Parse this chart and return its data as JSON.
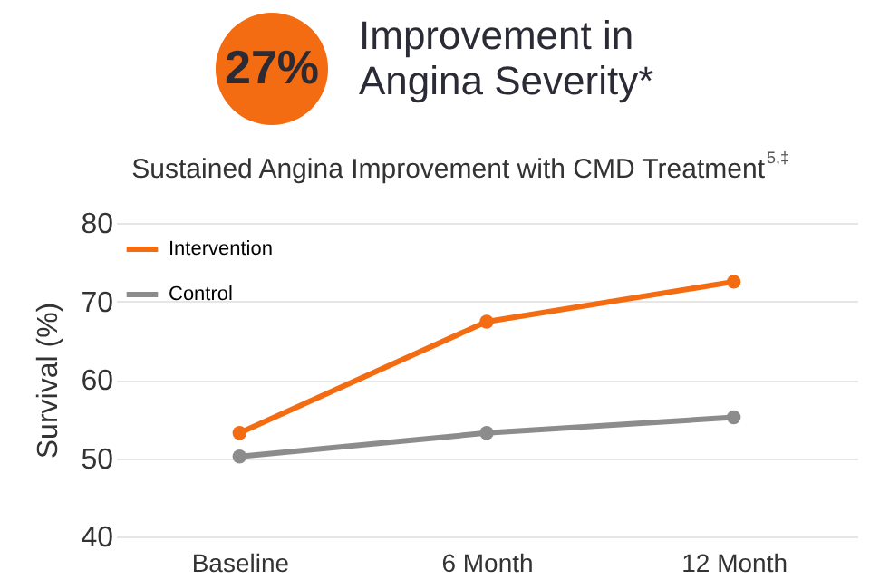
{
  "chart_data": {
    "type": "line",
    "title": "Improvement in\nAngina Severity*",
    "subtitle": "Sustained Angina Improvement with CMD Treatment$^{5,‡}$",
    "annotations": [
      "27%"
    ],
    "ylabel": "Survival (%)",
    "categories": [
      "Baseline",
      "6 Month",
      "12 Month"
    ],
    "series": [
      {
        "name": "Intervention",
        "color": "#f36c12",
        "values": [
          53.2,
          67.4,
          72.5
        ]
      },
      {
        "name": "Control",
        "color": "#8c8c8c",
        "values": [
          50.2,
          53.2,
          55.2
        ]
      }
    ],
    "ylim": [
      40,
      80
    ],
    "yticks": [
      40,
      50,
      60,
      70,
      80
    ],
    "grid": "y",
    "legend": "top left",
    "marker": "circle"
  }
}
